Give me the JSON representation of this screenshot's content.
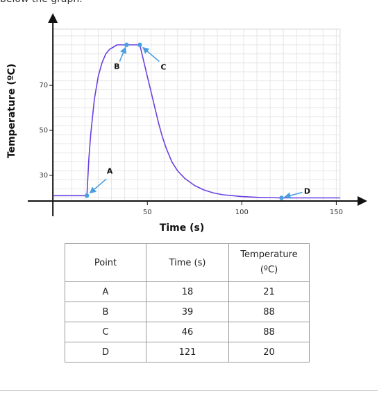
{
  "header_cut_text": "below the graph.",
  "chart_data": {
    "type": "line",
    "xlabel": "Time (s)",
    "ylabel": "Temperature (ºC)",
    "xlim": [
      -3,
      155
    ],
    "ylim": [
      18,
      95
    ],
    "x_ticks": [
      50,
      100,
      150
    ],
    "y_ticks": [
      30,
      50,
      70
    ],
    "grid": true,
    "series": [
      {
        "x": [
          0,
          17,
          18,
          19,
          20,
          22,
          24,
          26,
          28,
          30,
          32,
          34,
          36,
          39,
          42,
          44,
          46,
          48,
          50,
          52,
          54,
          56,
          58,
          60,
          63,
          66,
          70,
          75,
          80,
          85,
          90,
          100,
          110,
          121,
          130,
          152
        ],
        "y": [
          21,
          21,
          21,
          37,
          48,
          64,
          74,
          80,
          84,
          86,
          87,
          88,
          88,
          88,
          88,
          88,
          88,
          81,
          74,
          67,
          60,
          53,
          47,
          42,
          36,
          32,
          28.5,
          25.5,
          23.5,
          22.2,
          21.4,
          20.6,
          20.2,
          20,
          20,
          20
        ]
      }
    ],
    "points": [
      {
        "label": "A",
        "x": 18,
        "y": 21
      },
      {
        "label": "B",
        "x": 39,
        "y": 88
      },
      {
        "label": "C",
        "x": 46,
        "y": 88
      },
      {
        "label": "D",
        "x": 121,
        "y": 20
      }
    ],
    "colors": {
      "line": "#6a3fe0",
      "marker": "#4a9fe0",
      "arrow": "#4a9fe0"
    }
  },
  "table": {
    "headers": [
      "Point",
      "Time (s)",
      "Temperature",
      "(ºC)"
    ],
    "rows": [
      [
        "A",
        "18",
        "21"
      ],
      [
        "B",
        "39",
        "88"
      ],
      [
        "C",
        "46",
        "88"
      ],
      [
        "D",
        "121",
        "20"
      ]
    ]
  }
}
